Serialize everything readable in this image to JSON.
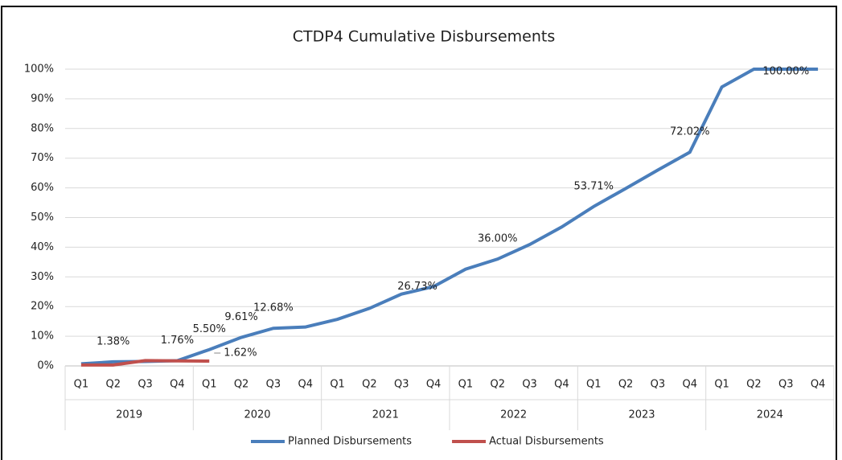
{
  "chart_data": {
    "type": "line",
    "title": "CTDP4 Cumulative Disbursements",
    "categories": [
      "Q1",
      "Q2",
      "Q3",
      "Q4",
      "Q1",
      "Q2",
      "Q3",
      "Q4",
      "Q1",
      "Q2",
      "Q3",
      "Q4",
      "Q1",
      "Q2",
      "Q3",
      "Q4",
      "Q1",
      "Q2",
      "Q3",
      "Q4",
      "Q1",
      "Q2",
      "Q3",
      "Q4"
    ],
    "groups": [
      "2019",
      "2020",
      "2021",
      "2022",
      "2023",
      "2024"
    ],
    "series": [
      {
        "name": "Planned Disbursements",
        "color": "#4a7ebb",
        "values": [
          0.7,
          1.38,
          1.5,
          1.76,
          5.5,
          9.61,
          12.68,
          13.1,
          15.7,
          19.4,
          24.2,
          26.73,
          32.6,
          36.0,
          40.9,
          46.8,
          53.71,
          59.8,
          66.0,
          72.02,
          94.0,
          100,
          100,
          100
        ],
        "value_labels": [
          null,
          "1.38%",
          null,
          "1.76%",
          "5.50%",
          "9.61%",
          "12.68%",
          null,
          null,
          null,
          null,
          "26.73%",
          null,
          "36.00%",
          null,
          null,
          "53.71%",
          null,
          null,
          "72.02%",
          null,
          null,
          "100.00%",
          null
        ]
      },
      {
        "name": "Actual Disbursements",
        "color": "#c0504d",
        "values": [
          0.3,
          0.3,
          1.8,
          1.7,
          1.62,
          null,
          null,
          null,
          null,
          null,
          null,
          null,
          null,
          null,
          null,
          null,
          null,
          null,
          null,
          null,
          null,
          null,
          null,
          null
        ],
        "value_labels": [
          null,
          null,
          null,
          null,
          "1.62%",
          null,
          null,
          null,
          null,
          null,
          null,
          null,
          null,
          null,
          null,
          null,
          null,
          null,
          null,
          null,
          null,
          null,
          null,
          null
        ]
      }
    ],
    "ylim": [
      0,
      100
    ],
    "yticks": [
      {
        "value": 0,
        "label": "0%"
      },
      {
        "value": 10,
        "label": "10%"
      },
      {
        "value": 20,
        "label": "20%"
      },
      {
        "value": 30,
        "label": "30%"
      },
      {
        "value": 40,
        "label": "40%"
      },
      {
        "value": 50,
        "label": "50%"
      },
      {
        "value": 60,
        "label": "60%"
      },
      {
        "value": 70,
        "label": "70%"
      },
      {
        "value": 80,
        "label": "80%"
      },
      {
        "value": 90,
        "label": "90%"
      },
      {
        "value": 100,
        "label": "100%"
      }
    ],
    "grid": true,
    "legend": "bottom"
  }
}
